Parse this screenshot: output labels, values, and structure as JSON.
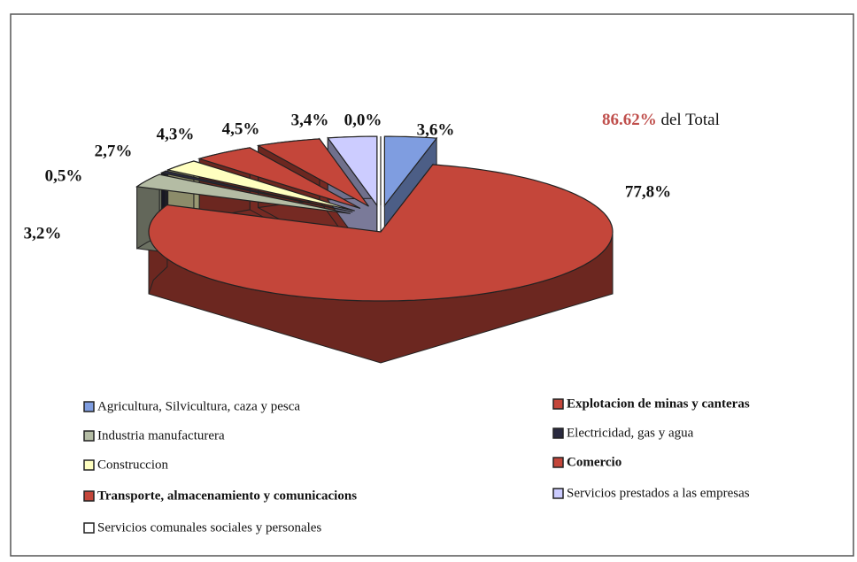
{
  "chart_data": {
    "type": "pie3d",
    "annotation": [
      "86.62%",
      "del Total"
    ],
    "categories": [
      "Agricultura, Silvicultura, caza y pesca",
      "Explotacion de minas y canteras",
      "Industria manufacturera",
      "Electricidad, gas y agua",
      "Construccion",
      "Comercio",
      "Transporte, almacenamiento y comunicacions",
      "Servicios prestados a las empresas",
      "Servicios comunales sociales y personales"
    ],
    "values": [
      3.6,
      77.8,
      3.2,
      0.5,
      2.7,
      4.3,
      4.5,
      3.4,
      0.0
    ],
    "value_labels": [
      "3,6%",
      "77,8%",
      "3,2%",
      "0,5%",
      "2,7%",
      "4,3%",
      "4,5%",
      "3,4%",
      "0,0%"
    ],
    "colors": [
      "#7f9de0",
      "#c4463a",
      "#b4bca4",
      "#2a2a40",
      "#ffffc0",
      "#c4463a",
      "#c4463a",
      "#ccccff",
      "#ffffff"
    ]
  }
}
